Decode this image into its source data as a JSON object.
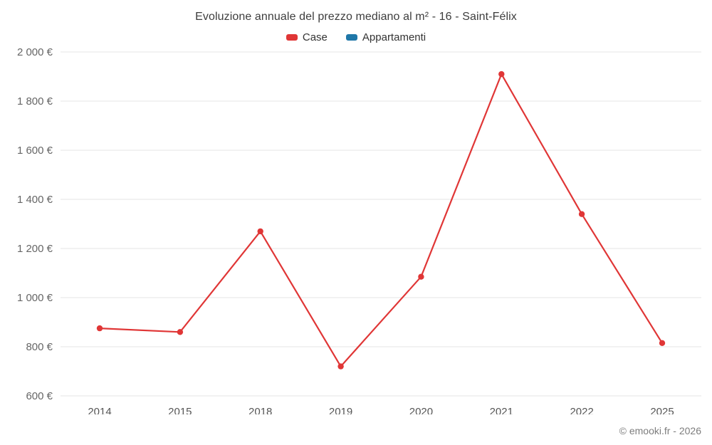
{
  "chart_data": {
    "type": "line",
    "title": "Evoluzione annuale del prezzo mediano al m² - 16 - Saint-Félix",
    "categories": [
      "2014",
      "2015",
      "2018",
      "2019",
      "2020",
      "2021",
      "2022",
      "2025"
    ],
    "series": [
      {
        "name": "Case",
        "color": "#e03636",
        "values": [
          875,
          860,
          1270,
          720,
          1085,
          1910,
          1340,
          815
        ]
      },
      {
        "name": "Appartamenti",
        "color": "#1f77a8",
        "values": []
      }
    ],
    "ylim": [
      600,
      2000
    ],
    "ytick_step": 200,
    "y_suffix": " €",
    "grid": true,
    "legend_position": "top",
    "xlabel": "",
    "ylabel": ""
  },
  "footer": {
    "copyright": "© emooki.fr - 2026"
  }
}
